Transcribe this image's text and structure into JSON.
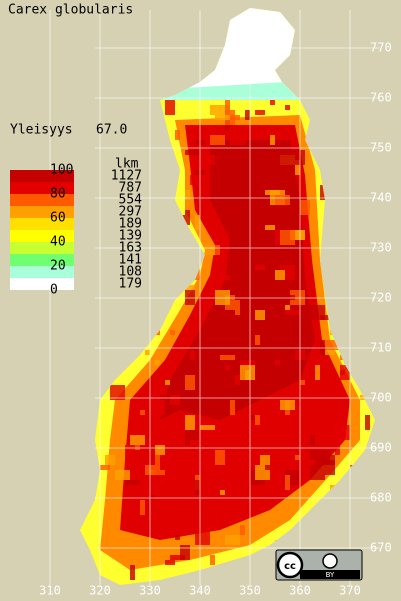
{
  "title": "Carex globularis",
  "frequency": {
    "label": "Yleisyys",
    "value": "67.0"
  },
  "legend": {
    "class_labels": [
      100,
      80,
      60,
      40,
      20,
      0
    ],
    "colors": [
      "#c40000",
      "#e20000",
      "#ff5a00",
      "#ffa000",
      "#ffe000",
      "#ffff00",
      "#c8ff30",
      "#70ff70",
      "#a8ffd8",
      "#c8ffff",
      "#ffffff"
    ],
    "count_header": "lkm",
    "counts": [
      1127,
      787,
      554,
      297,
      189,
      139,
      163,
      141,
      108,
      179
    ]
  },
  "grid": {
    "y_labels": [
      770,
      760,
      750,
      740,
      730,
      720,
      710,
      700,
      690,
      680,
      670
    ],
    "x_labels": [
      310,
      320,
      330,
      340,
      350,
      360,
      370
    ]
  },
  "license": {
    "badge": "BY"
  }
}
